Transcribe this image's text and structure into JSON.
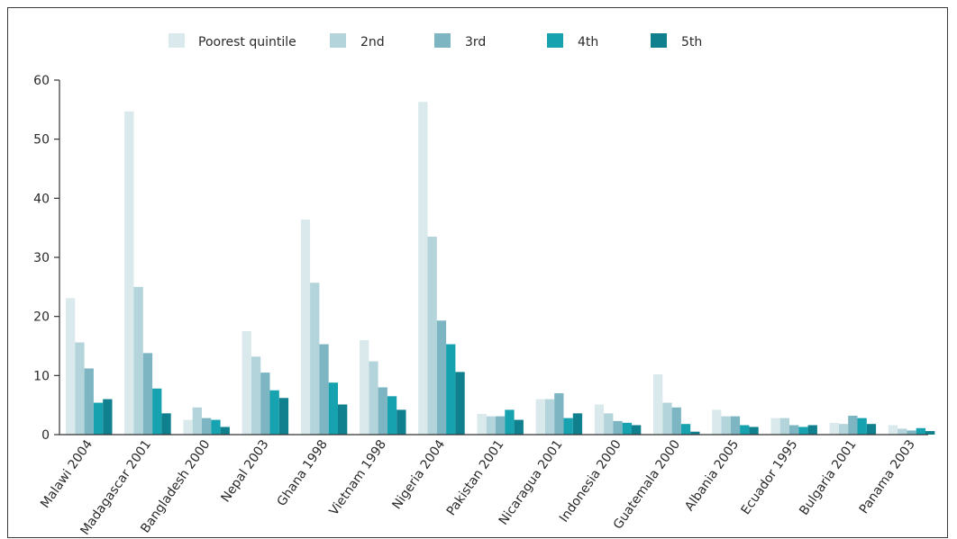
{
  "chart_data": {
    "type": "bar",
    "title": "",
    "xlabel": "",
    "ylabel": "",
    "ylim": [
      0,
      60
    ],
    "yticks": [
      0,
      10,
      20,
      30,
      40,
      50,
      60
    ],
    "grid": false,
    "legend_position": "top",
    "categories": [
      "Malawi 2004",
      "Madagascar 2001",
      "Bangladesh 2000",
      "Nepal 2003",
      "Ghana 1998",
      "Vietnam 1998",
      "Nigeria 2004",
      "Pakistan 2001",
      "Nicaragua 2001",
      "Indonesia 2000",
      "Guatemala 2000",
      "Albania 2005",
      "Ecuador 1995",
      "Bulgaria 2001",
      "Panama 2003"
    ],
    "series": [
      {
        "name": "Poorest quintile",
        "color": "#daeaec",
        "values": [
          23.1,
          54.7,
          2.5,
          17.5,
          36.4,
          16.0,
          56.3,
          3.5,
          6.0,
          5.1,
          10.2,
          4.2,
          2.8,
          2.0,
          1.6
        ]
      },
      {
        "name": "2nd",
        "color": "#b3d4da",
        "values": [
          15.6,
          25.0,
          4.6,
          13.2,
          25.7,
          12.4,
          33.5,
          3.1,
          6.0,
          3.6,
          5.4,
          3.1,
          2.8,
          1.8,
          1.0
        ]
      },
      {
        "name": "3rd",
        "color": "#7db6c2",
        "values": [
          11.2,
          13.8,
          2.8,
          10.5,
          15.3,
          8.0,
          19.3,
          3.1,
          7.0,
          2.3,
          4.6,
          3.1,
          1.6,
          3.2,
          0.7
        ]
      },
      {
        "name": "4th",
        "color": "#17a2b0",
        "values": [
          5.4,
          7.8,
          2.5,
          7.5,
          8.8,
          6.5,
          15.3,
          4.2,
          2.8,
          2.0,
          1.8,
          1.6,
          1.3,
          2.8,
          1.1
        ]
      },
      {
        "name": "5th",
        "color": "#107f8e",
        "values": [
          6.0,
          3.6,
          1.3,
          6.2,
          5.1,
          4.2,
          10.6,
          2.5,
          3.6,
          1.6,
          0.5,
          1.3,
          1.6,
          1.8,
          0.6
        ]
      }
    ]
  }
}
